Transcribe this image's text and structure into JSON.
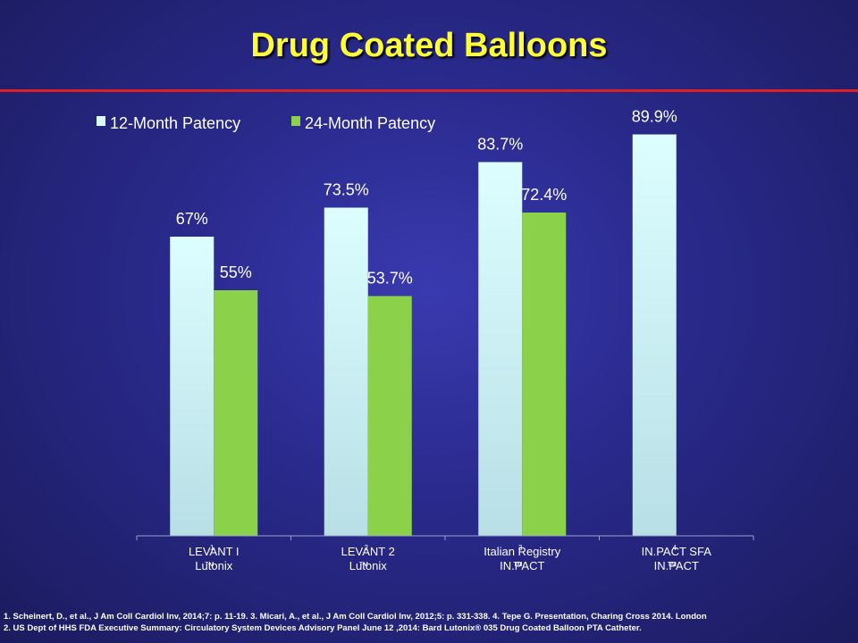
{
  "slide": {
    "title": "Drug Coated Balloons",
    "colors": {
      "title": "#ffff33",
      "rule": "#e02020",
      "background": "#2a2a8e"
    }
  },
  "chart_data": {
    "type": "bar",
    "title": "",
    "xlabel": "",
    "ylabel": "",
    "ylim": [
      0,
      100
    ],
    "grid": false,
    "legend_position": "top-left",
    "categories": [
      [
        "LEVANT I",
        "Lutonix"
      ],
      [
        "LEVANT 2",
        "Lutonix"
      ],
      [
        "Italian Registry",
        "IN.PACT"
      ],
      [
        "IN.PACT SFA",
        "IN.PACT"
      ]
    ],
    "category_superscripts": [
      "1",
      "2",
      "3",
      "4"
    ],
    "trademark_marks": [
      "TM",
      "TM",
      "TM",
      "TM"
    ],
    "series": [
      {
        "name": "12-Month Patency",
        "color": "#d8fbfd",
        "values": [
          67,
          73.5,
          83.7,
          89.9
        ],
        "labels": [
          "67%",
          "73.5%",
          "83.7%",
          "89.9%"
        ]
      },
      {
        "name": "24-Month Patency",
        "color": "#8cd14a",
        "values": [
          55,
          53.7,
          72.4,
          null
        ],
        "labels": [
          "55%",
          "53.7%",
          "72.4%",
          ""
        ]
      }
    ]
  },
  "footnotes": [
    "1. Scheinert, D., et al., J Am Coll Cardiol Inv, 2014;7: p. 11-19. 3. Micari, A., et al., J Am Coll Cardiol Inv, 2012;5: p. 331-338. 4. Tepe G. Presentation, Charing Cross 2014. London",
    "2. US Dept of HHS FDA Executive Summary: Circulatory System Devices Advisory Panel June 12 ,2014: Bard Lutonix® 035 Drug Coated Balloon PTA Catheter."
  ]
}
